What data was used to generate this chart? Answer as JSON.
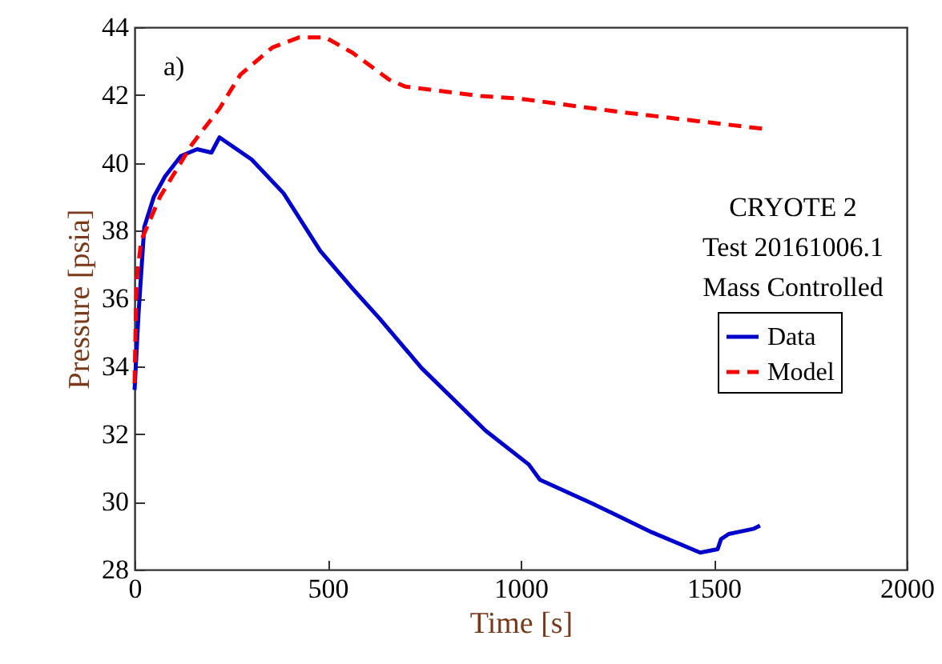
{
  "chart_data": {
    "type": "line",
    "xlabel": "Time [s]",
    "ylabel": "Pressure [psia]",
    "xlim": [
      0,
      2000
    ],
    "xticks": [
      0,
      500,
      1000,
      1500,
      2000
    ],
    "ylim": [
      28,
      44
    ],
    "yticks": [
      28,
      30,
      32,
      34,
      36,
      38,
      40,
      42,
      44
    ],
    "grid": false,
    "legend": "right",
    "marker": "none",
    "annotations": [
      "a)",
      "CRYOTE 2",
      "Test 20161006.1",
      "Mass Controlled"
    ],
    "series": [
      {
        "name": "Data",
        "color": "#0000cc",
        "line_style": "solid",
        "x": [
          0,
          10,
          25,
          50,
          79,
          120,
          162,
          199,
          220,
          303,
          386,
          481,
          564,
          635,
          743,
          909,
          1021,
          1050,
          1187,
          1340,
          1465,
          1510,
          1519,
          1539,
          1602,
          1620
        ],
        "values": [
          33.3,
          35.5,
          38.1,
          39.0,
          39.6,
          40.2,
          40.4,
          40.3,
          40.75,
          40.1,
          39.1,
          37.4,
          36.3,
          35.4,
          33.95,
          32.1,
          31.1,
          30.65,
          29.94,
          29.1,
          28.5,
          28.6,
          28.9,
          29.05,
          29.2,
          29.3
        ]
      },
      {
        "name": "Model",
        "color": "#ff0000",
        "line_style": "dashed",
        "x": [
          0,
          5,
          17,
          66,
          149,
          220,
          274,
          357,
          427,
          494,
          564,
          660,
          701,
          896,
          992,
          1257,
          1631
        ],
        "values": [
          33.5,
          36.5,
          37.7,
          39.0,
          40.55,
          41.6,
          42.6,
          43.4,
          43.7,
          43.7,
          43.25,
          42.45,
          42.25,
          41.97,
          41.9,
          41.5,
          41.0
        ]
      }
    ]
  }
}
